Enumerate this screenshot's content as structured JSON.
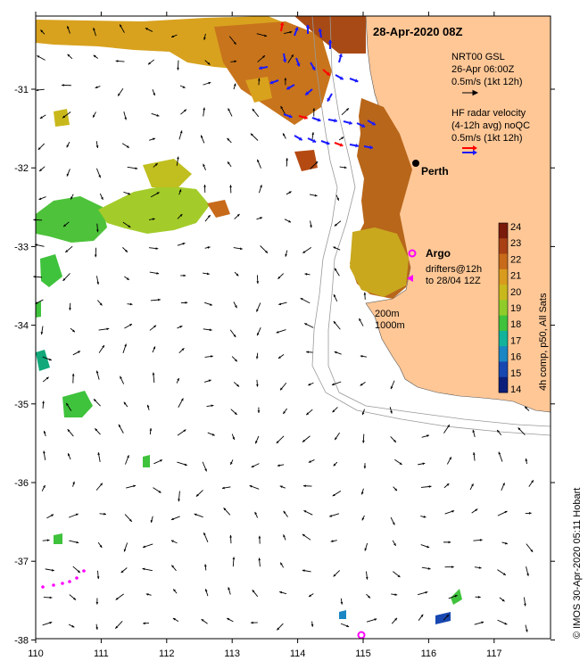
{
  "title": "28-Apr-2020 08Z",
  "legend": {
    "gsl_line1": "NRT00 GSL",
    "gsl_line2": "26-Apr 06:00Z",
    "gsl_line3": "0.5m/s (1kt 12h)",
    "hf_line1": "HF radar velocity",
    "hf_line2": "(4-12h avg) noQC",
    "hf_line3": "0.5m/s (1kt 12h)"
  },
  "places": {
    "city": "Perth",
    "argo": "Argo",
    "drifters1": "drifters@12h",
    "drifters2": "to 28/04 12Z"
  },
  "depth_labels": {
    "d1": "200m",
    "d2": "1000m"
  },
  "colorbar": {
    "label": "4h comp, p50, All Sats",
    "ticks": [
      "24",
      "23",
      "22",
      "21",
      "20",
      "19",
      "18",
      "17",
      "16",
      "15",
      "14"
    ],
    "colors": [
      "#7a1a0b",
      "#a84014",
      "#c76a1a",
      "#d99b1d",
      "#c9b81c",
      "#8fcc2a",
      "#3fc23c",
      "#12b39a",
      "#1a86c4",
      "#1747b0",
      "#0b1f7a"
    ]
  },
  "axes": {
    "x_ticks": [
      "110",
      "111",
      "112",
      "113",
      "114",
      "115",
      "116",
      "117"
    ],
    "y_ticks": [
      "-31",
      "-32",
      "-33",
      "-34",
      "-35",
      "-36",
      "-37",
      "-38"
    ]
  },
  "credit": "© IMOS 30-Apr-2020 05:11 Hobart",
  "colors": {
    "land": "#ffc796",
    "blue_vec": "#1a1aff",
    "red_vec": "#ff0000",
    "magenta": "#ff00ff"
  }
}
